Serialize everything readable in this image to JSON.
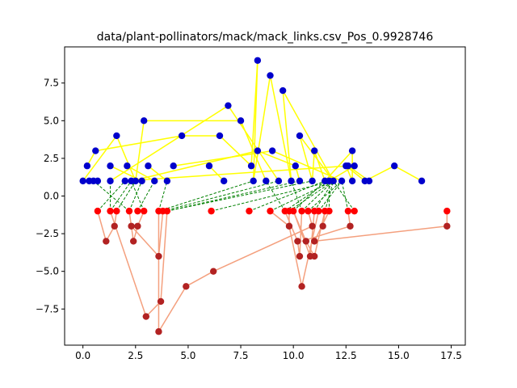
{
  "chart_data": {
    "type": "scatter",
    "title": "data/plant-pollinators/mack/mack_links.csv_Pos_0.9928746",
    "xlabel": "",
    "ylabel": "",
    "xlim": [
      -0.87,
      18.17
    ],
    "ylim": [
      -9.9,
      9.9
    ],
    "xticks": [
      0.0,
      2.5,
      5.0,
      7.5,
      10.0,
      12.5,
      15.0,
      17.5
    ],
    "xtick_labels": [
      "0.0",
      "2.5",
      "5.0",
      "7.5",
      "10.0",
      "12.5",
      "15.0",
      "17.5"
    ],
    "yticks": [
      -7.5,
      -5.0,
      -2.5,
      0.0,
      2.5,
      5.0,
      7.5
    ],
    "ytick_labels": [
      "−7.5",
      "−5.0",
      "−2.5",
      "0.0",
      "2.5",
      "5.0",
      "7.5"
    ],
    "grid": false,
    "colors": {
      "upper_nodes": "#0000cc",
      "upper_edges": "#ffff00",
      "lower_nodes_root": "#ff0000",
      "lower_nodes": "#b22222",
      "lower_edges": "#f4a07e",
      "cross_edges": "#008000"
    },
    "upper_nodes": [
      [
        0.0,
        1
      ],
      [
        0.3,
        1
      ],
      [
        0.5,
        1
      ],
      [
        0.7,
        1
      ],
      [
        1.3,
        1
      ],
      [
        2.0,
        1
      ],
      [
        2.3,
        1
      ],
      [
        2.5,
        1
      ],
      [
        2.8,
        1
      ],
      [
        3.4,
        1
      ],
      [
        4.0,
        1
      ],
      [
        6.7,
        1
      ],
      [
        8.1,
        1
      ],
      [
        8.7,
        1
      ],
      [
        9.3,
        1
      ],
      [
        9.9,
        1
      ],
      [
        10.3,
        1
      ],
      [
        10.9,
        1
      ],
      [
        11.5,
        1
      ],
      [
        11.7,
        1
      ],
      [
        11.9,
        1
      ],
      [
        12.3,
        1
      ],
      [
        12.8,
        1
      ],
      [
        13.4,
        1
      ],
      [
        13.6,
        1
      ],
      [
        16.1,
        1
      ],
      [
        0.2,
        2
      ],
      [
        1.3,
        2
      ],
      [
        2.1,
        2
      ],
      [
        3.1,
        2
      ],
      [
        4.3,
        2
      ],
      [
        6.0,
        2
      ],
      [
        8.0,
        2
      ],
      [
        10.1,
        2
      ],
      [
        12.5,
        2
      ],
      [
        12.6,
        2
      ],
      [
        12.9,
        2
      ],
      [
        14.8,
        2
      ],
      [
        0.6,
        3
      ],
      [
        8.3,
        3
      ],
      [
        9.0,
        3
      ],
      [
        11.0,
        3
      ],
      [
        12.8,
        3
      ],
      [
        1.6,
        4
      ],
      [
        4.7,
        4
      ],
      [
        6.5,
        4
      ],
      [
        10.3,
        4
      ],
      [
        2.9,
        5
      ],
      [
        7.5,
        5
      ],
      [
        6.9,
        6
      ],
      [
        9.5,
        7
      ],
      [
        8.9,
        8
      ],
      [
        8.3,
        9
      ]
    ],
    "upper_edges": [
      [
        [
          0.2,
          2
        ],
        [
          0.6,
          3
        ]
      ],
      [
        [
          0.6,
          3
        ],
        [
          4.7,
          4
        ]
      ],
      [
        [
          4.7,
          4
        ],
        [
          6.5,
          4
        ]
      ],
      [
        [
          6.5,
          4
        ],
        [
          8.0,
          2
        ]
      ],
      [
        [
          8.0,
          2
        ],
        [
          8.3,
          9
        ]
      ],
      [
        [
          8.3,
          9
        ],
        [
          8.1,
          1
        ]
      ],
      [
        [
          8.1,
          1
        ],
        [
          8.9,
          8
        ]
      ],
      [
        [
          8.9,
          8
        ],
        [
          9.9,
          1
        ]
      ],
      [
        [
          9.9,
          1
        ],
        [
          9.5,
          7
        ]
      ],
      [
        [
          9.5,
          7
        ],
        [
          11.9,
          1
        ]
      ],
      [
        [
          11.9,
          1
        ],
        [
          10.3,
          4
        ]
      ],
      [
        [
          10.3,
          4
        ],
        [
          10.9,
          1
        ]
      ],
      [
        [
          10.9,
          1
        ],
        [
          11.0,
          3
        ]
      ],
      [
        [
          11.0,
          3
        ],
        [
          11.5,
          1
        ]
      ],
      [
        [
          11.5,
          1
        ],
        [
          12.8,
          3
        ]
      ],
      [
        [
          12.8,
          3
        ],
        [
          12.8,
          1
        ]
      ],
      [
        [
          12.8,
          1
        ],
        [
          12.5,
          2
        ]
      ],
      [
        [
          12.5,
          2
        ],
        [
          13.4,
          1
        ]
      ],
      [
        [
          13.4,
          1
        ],
        [
          14.8,
          2
        ]
      ],
      [
        [
          14.8,
          2
        ],
        [
          16.1,
          1
        ]
      ],
      [
        [
          0.0,
          1
        ],
        [
          1.6,
          4
        ]
      ],
      [
        [
          1.6,
          4
        ],
        [
          2.5,
          1
        ]
      ],
      [
        [
          2.5,
          1
        ],
        [
          2.9,
          5
        ]
      ],
      [
        [
          2.9,
          5
        ],
        [
          7.5,
          5
        ]
      ],
      [
        [
          7.5,
          5
        ],
        [
          8.7,
          1
        ]
      ],
      [
        [
          1.3,
          1
        ],
        [
          6.9,
          6
        ]
      ],
      [
        [
          6.9,
          6
        ],
        [
          9.3,
          1
        ]
      ],
      [
        [
          2.3,
          1
        ],
        [
          8.3,
          3
        ]
      ],
      [
        [
          8.3,
          3
        ],
        [
          10.1,
          2
        ]
      ],
      [
        [
          10.1,
          2
        ],
        [
          10.3,
          1
        ]
      ],
      [
        [
          4.3,
          2
        ],
        [
          9.0,
          3
        ]
      ],
      [
        [
          9.0,
          3
        ],
        [
          12.3,
          1
        ]
      ],
      [
        [
          2.0,
          1
        ],
        [
          12.6,
          2
        ]
      ],
      [
        [
          12.6,
          2
        ],
        [
          13.6,
          1
        ]
      ],
      [
        [
          1.3,
          2
        ],
        [
          2.8,
          1
        ]
      ],
      [
        [
          2.1,
          2
        ],
        [
          3.4,
          1
        ]
      ],
      [
        [
          3.1,
          2
        ],
        [
          4.0,
          1
        ]
      ],
      [
        [
          6.0,
          2
        ],
        [
          6.7,
          1
        ]
      ],
      [
        [
          12.9,
          2
        ],
        [
          11.7,
          1
        ]
      ],
      [
        [
          0.7,
          1
        ],
        [
          0.3,
          1
        ]
      ]
    ],
    "lower_nodes_root": [
      [
        0.7,
        -1
      ],
      [
        1.3,
        -1
      ],
      [
        1.6,
        -1
      ],
      [
        2.2,
        -1
      ],
      [
        2.6,
        -1
      ],
      [
        2.9,
        -1
      ],
      [
        3.6,
        -1
      ],
      [
        3.8,
        -1
      ],
      [
        4.0,
        -1
      ],
      [
        6.1,
        -1
      ],
      [
        7.9,
        -1
      ],
      [
        8.9,
        -1
      ],
      [
        9.6,
        -1
      ],
      [
        9.8,
        -1
      ],
      [
        10.0,
        -1
      ],
      [
        10.4,
        -1
      ],
      [
        10.7,
        -1
      ],
      [
        11.0,
        -1
      ],
      [
        11.2,
        -1
      ],
      [
        11.5,
        -1
      ],
      [
        11.7,
        -1
      ],
      [
        12.6,
        -1
      ],
      [
        12.9,
        -1
      ],
      [
        17.3,
        -1
      ]
    ],
    "lower_nodes": [
      [
        1.5,
        -2
      ],
      [
        2.3,
        -2
      ],
      [
        2.6,
        -2
      ],
      [
        9.8,
        -2
      ],
      [
        10.9,
        -2
      ],
      [
        11.4,
        -2
      ],
      [
        12.7,
        -2
      ],
      [
        17.3,
        -2
      ],
      [
        1.1,
        -3
      ],
      [
        2.4,
        -3
      ],
      [
        10.2,
        -3
      ],
      [
        10.6,
        -3
      ],
      [
        11.0,
        -3
      ],
      [
        3.6,
        -4
      ],
      [
        10.3,
        -4
      ],
      [
        10.8,
        -4
      ],
      [
        11.0,
        -4
      ],
      [
        6.2,
        -5
      ],
      [
        4.9,
        -6
      ],
      [
        10.4,
        -6
      ],
      [
        3.7,
        -7
      ],
      [
        3.0,
        -8
      ],
      [
        3.6,
        -9
      ]
    ],
    "lower_edges": [
      [
        [
          0.7,
          -1
        ],
        [
          1.1,
          -3
        ]
      ],
      [
        [
          1.1,
          -3
        ],
        [
          1.5,
          -2
        ]
      ],
      [
        [
          1.5,
          -2
        ],
        [
          1.6,
          -1
        ]
      ],
      [
        [
          1.3,
          -1
        ],
        [
          3.0,
          -8
        ]
      ],
      [
        [
          3.0,
          -8
        ],
        [
          3.7,
          -7
        ]
      ],
      [
        [
          3.7,
          -7
        ],
        [
          4.0,
          -1
        ]
      ],
      [
        [
          2.2,
          -1
        ],
        [
          2.4,
          -3
        ]
      ],
      [
        [
          2.4,
          -3
        ],
        [
          2.6,
          -2
        ]
      ],
      [
        [
          2.6,
          -2
        ],
        [
          2.9,
          -1
        ]
      ],
      [
        [
          2.3,
          -2
        ],
        [
          3.6,
          -4
        ]
      ],
      [
        [
          3.6,
          -4
        ],
        [
          3.8,
          -1
        ]
      ],
      [
        [
          3.6,
          -1
        ],
        [
          3.6,
          -9
        ]
      ],
      [
        [
          3.6,
          -9
        ],
        [
          4.9,
          -6
        ]
      ],
      [
        [
          4.9,
          -6
        ],
        [
          6.2,
          -5
        ]
      ],
      [
        [
          6.2,
          -5
        ],
        [
          10.9,
          -2
        ]
      ],
      [
        [
          10.9,
          -2
        ],
        [
          10.7,
          -1
        ]
      ],
      [
        [
          10.4,
          -1
        ],
        [
          10.3,
          -4
        ]
      ],
      [
        [
          10.3,
          -4
        ],
        [
          10.2,
          -3
        ]
      ],
      [
        [
          10.2,
          -3
        ],
        [
          9.6,
          -1
        ]
      ],
      [
        [
          9.8,
          -1
        ],
        [
          9.8,
          -2
        ]
      ],
      [
        [
          9.8,
          -2
        ],
        [
          10.4,
          -6
        ]
      ],
      [
        [
          10.4,
          -6
        ],
        [
          11.2,
          -1
        ]
      ],
      [
        [
          10.0,
          -1
        ],
        [
          10.8,
          -4
        ]
      ],
      [
        [
          10.8,
          -4
        ],
        [
          11.0,
          -1
        ]
      ],
      [
        [
          11.0,
          -4
        ],
        [
          11.5,
          -1
        ]
      ],
      [
        [
          11.0,
          -4
        ],
        [
          10.6,
          -3
        ]
      ],
      [
        [
          10.6,
          -3
        ],
        [
          10.0,
          -1
        ]
      ],
      [
        [
          11.0,
          -3
        ],
        [
          11.7,
          -1
        ]
      ],
      [
        [
          11.4,
          -2
        ],
        [
          11.5,
          -1
        ]
      ],
      [
        [
          12.7,
          -2
        ],
        [
          12.6,
          -1
        ]
      ],
      [
        [
          12.7,
          -2
        ],
        [
          10.4,
          -3
        ]
      ],
      [
        [
          17.3,
          -2
        ],
        [
          17.3,
          -1
        ]
      ],
      [
        [
          17.3,
          -2
        ],
        [
          11.0,
          -3
        ]
      ],
      [
        [
          8.9,
          -1
        ],
        [
          9.8,
          -2
        ]
      ]
    ],
    "cross_edges": [
      [
        [
          0.7,
          -1
        ],
        [
          2.0,
          1
        ]
      ],
      [
        [
          1.3,
          -1
        ],
        [
          2.3,
          1
        ]
      ],
      [
        [
          1.6,
          -1
        ],
        [
          2.5,
          1
        ]
      ],
      [
        [
          2.2,
          -1
        ],
        [
          2.8,
          1
        ]
      ],
      [
        [
          2.6,
          -1
        ],
        [
          3.4,
          1
        ]
      ],
      [
        [
          2.9,
          -1
        ],
        [
          2.3,
          1
        ]
      ],
      [
        [
          3.6,
          -1
        ],
        [
          8.1,
          1
        ]
      ],
      [
        [
          3.8,
          -1
        ],
        [
          9.3,
          1
        ]
      ],
      [
        [
          4.0,
          -1
        ],
        [
          10.9,
          1
        ]
      ],
      [
        [
          6.1,
          -1
        ],
        [
          11.9,
          1
        ]
      ],
      [
        [
          7.9,
          -1
        ],
        [
          11.5,
          1
        ]
      ],
      [
        [
          8.9,
          -1
        ],
        [
          11.9,
          1
        ]
      ],
      [
        [
          9.6,
          -1
        ],
        [
          11.7,
          1
        ]
      ],
      [
        [
          9.8,
          -1
        ],
        [
          11.9,
          1
        ]
      ],
      [
        [
          10.0,
          -1
        ],
        [
          11.5,
          1
        ]
      ],
      [
        [
          10.4,
          -1
        ],
        [
          11.9,
          1
        ]
      ],
      [
        [
          10.7,
          -1
        ],
        [
          12.3,
          1
        ]
      ],
      [
        [
          11.0,
          -1
        ],
        [
          11.9,
          1
        ]
      ],
      [
        [
          11.2,
          -1
        ],
        [
          12.3,
          1
        ]
      ],
      [
        [
          11.5,
          -1
        ],
        [
          11.9,
          1
        ]
      ],
      [
        [
          11.7,
          -1
        ],
        [
          11.7,
          1
        ]
      ],
      [
        [
          12.6,
          -1
        ],
        [
          12.3,
          1
        ]
      ],
      [
        [
          12.9,
          -1
        ],
        [
          11.9,
          1
        ]
      ],
      [
        [
          9.6,
          -1
        ],
        [
          8.7,
          1
        ]
      ],
      [
        [
          10.4,
          -1
        ],
        [
          9.9,
          1
        ]
      ],
      [
        [
          4.0,
          -1
        ],
        [
          10.3,
          1
        ]
      ],
      [
        [
          2.2,
          -1
        ],
        [
          0.5,
          1
        ]
      ],
      [
        [
          1.3,
          -1
        ],
        [
          1.3,
          1
        ]
      ],
      [
        [
          3.6,
          -1
        ],
        [
          4.0,
          1
        ]
      ]
    ]
  }
}
